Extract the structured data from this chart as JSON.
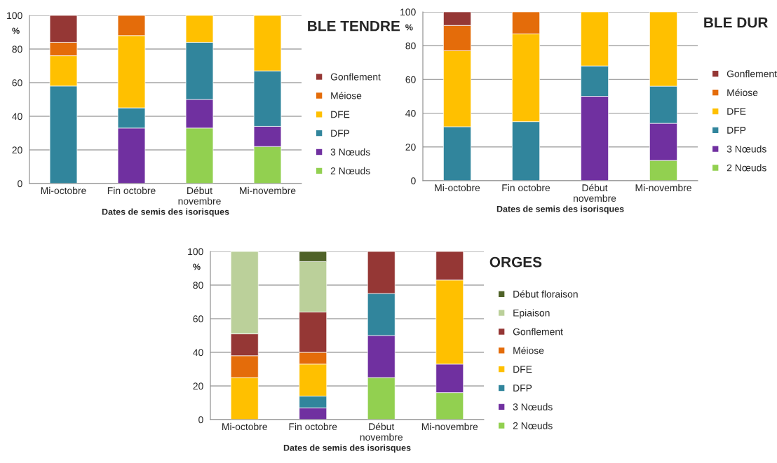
{
  "chart_data": [
    {
      "type": "bar",
      "stacked": true,
      "title": "BLE TENDRE",
      "xlabel": "Dates de semis des isorisques",
      "ylabel": "%",
      "categories": [
        "Mi-octobre",
        "Fin octobre",
        "Début\nnovembre",
        "Mi-novembre"
      ],
      "ylim": [
        0,
        100
      ],
      "yticks": [
        0,
        20,
        40,
        60,
        80,
        100
      ],
      "grid": "y",
      "legend": "right",
      "series": [
        {
          "name": "2 Nœuds",
          "color": "#92d050",
          "values": [
            null,
            null,
            33,
            22
          ]
        },
        {
          "name": "3 Nœuds",
          "color": "#7030a0",
          "values": [
            null,
            33,
            17,
            12
          ]
        },
        {
          "name": "DFP",
          "color": "#31859c",
          "values": [
            58,
            12,
            34,
            33
          ]
        },
        {
          "name": "DFE",
          "color": "#ffc000",
          "values": [
            18,
            43,
            16,
            33
          ]
        },
        {
          "name": "Méiose",
          "color": "#e46c0a",
          "values": [
            8,
            12,
            null,
            null
          ]
        },
        {
          "name": "Gonflement",
          "color": "#953735",
          "values": [
            16,
            null,
            null,
            null
          ]
        }
      ]
    },
    {
      "type": "bar",
      "stacked": true,
      "title": "BLE DUR",
      "xlabel": "Dates de semis des isorisques",
      "ylabel": "%",
      "categories": [
        "Mi-octobre",
        "Fin octobre",
        "Début\nnovembre",
        "Mi-novembre"
      ],
      "ylim": [
        0,
        100
      ],
      "yticks": [
        0,
        20,
        40,
        60,
        80,
        100
      ],
      "grid": "y",
      "legend": "right",
      "series": [
        {
          "name": "2 Nœuds",
          "color": "#92d050",
          "values": [
            null,
            null,
            null,
            12
          ]
        },
        {
          "name": "3 Nœuds",
          "color": "#7030a0",
          "values": [
            null,
            null,
            50,
            22
          ]
        },
        {
          "name": "DFP",
          "color": "#31859c",
          "values": [
            32,
            35,
            18,
            22
          ]
        },
        {
          "name": "DFE",
          "color": "#ffc000",
          "values": [
            45,
            52,
            32,
            44
          ]
        },
        {
          "name": "Méiose",
          "color": "#e46c0a",
          "values": [
            15,
            13,
            null,
            null
          ]
        },
        {
          "name": "Gonflement",
          "color": "#953735",
          "values": [
            8,
            null,
            null,
            null
          ]
        }
      ]
    },
    {
      "type": "bar",
      "stacked": true,
      "title": "ORGES",
      "xlabel": "Dates de semis des isorisques",
      "ylabel": "%",
      "categories": [
        "Mi-octobre",
        "Fin octobre",
        "Début\nnovembre",
        "Mi-novembre"
      ],
      "ylim": [
        0,
        100
      ],
      "yticks": [
        0,
        20,
        40,
        60,
        80,
        100
      ],
      "grid": "y",
      "legend": "right",
      "series": [
        {
          "name": "2 Nœuds",
          "color": "#92d050",
          "values": [
            null,
            null,
            25,
            16
          ]
        },
        {
          "name": "3 Nœuds",
          "color": "#7030a0",
          "values": [
            null,
            7,
            25,
            17
          ]
        },
        {
          "name": "DFP",
          "color": "#31859c",
          "values": [
            null,
            7,
            25,
            null
          ]
        },
        {
          "name": "DFE",
          "color": "#ffc000",
          "values": [
            25,
            19,
            null,
            50
          ]
        },
        {
          "name": "Méiose",
          "color": "#e46c0a",
          "values": [
            13,
            7,
            null,
            null
          ]
        },
        {
          "name": "Gonflement",
          "color": "#953735",
          "values": [
            13,
            24,
            25,
            17
          ]
        },
        {
          "name": "Epiaison",
          "color": "#bbd09a",
          "values": [
            49,
            30,
            null,
            null
          ]
        },
        {
          "name": "Début floraison",
          "color": "#4f6228",
          "values": [
            null,
            6,
            null,
            null
          ]
        }
      ]
    }
  ]
}
